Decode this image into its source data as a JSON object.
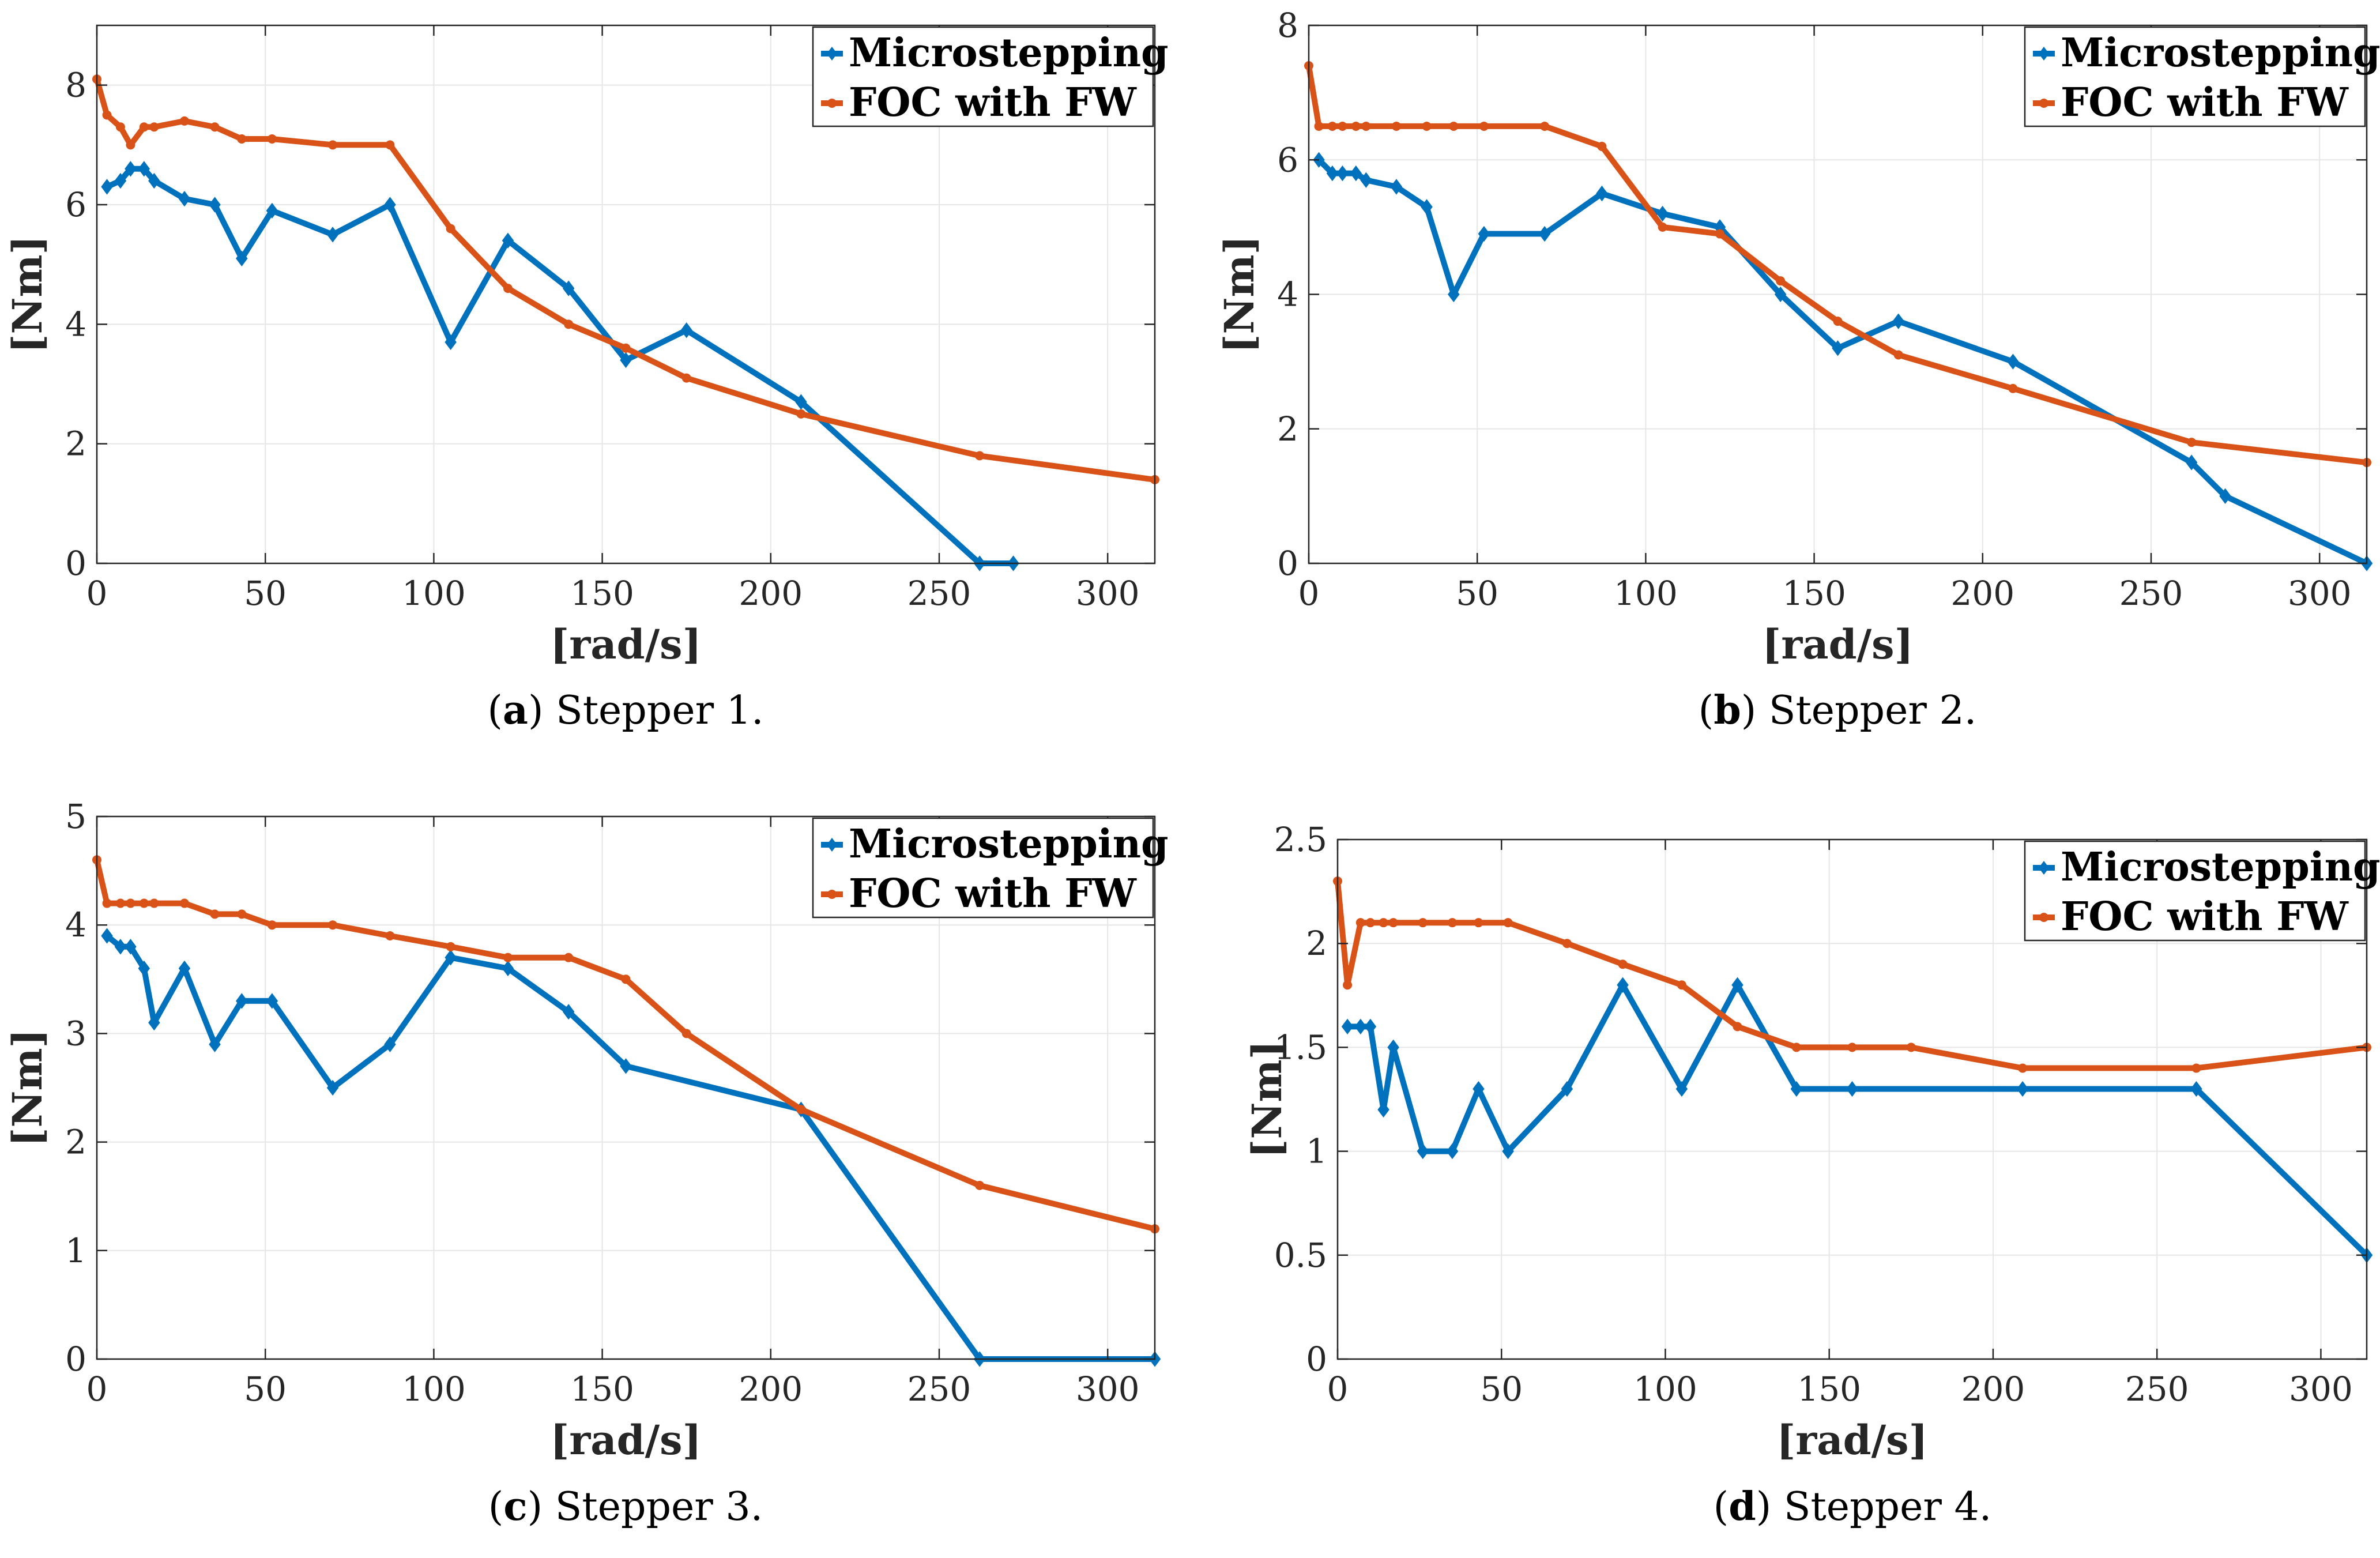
{
  "chart_data": [
    {
      "type": "line",
      "caption": {
        "letter": "a",
        "text": "Stepper 1."
      },
      "xlabel": "[rad/s]",
      "ylabel": "[Nm]",
      "xlim": [
        0,
        314
      ],
      "ylim": [
        0,
        9
      ],
      "xticks": [
        0,
        50,
        100,
        150,
        200,
        250,
        300
      ],
      "yticks": [
        0,
        2,
        4,
        6,
        8
      ],
      "grid": true,
      "legend_position": "top-right",
      "series": [
        {
          "name": "Microstepping",
          "color": "#0072BD",
          "marker": "diamond",
          "x": [
            3,
            7,
            10,
            14,
            17,
            26,
            35,
            43,
            52,
            70,
            87,
            105,
            122,
            140,
            157,
            175,
            209,
            262,
            272
          ],
          "y": [
            6.3,
            6.4,
            6.6,
            6.6,
            6.4,
            6.1,
            6.0,
            5.1,
            5.9,
            5.5,
            6.0,
            3.7,
            5.4,
            4.6,
            3.4,
            3.9,
            2.7,
            0,
            0
          ]
        },
        {
          "name": "FOC with FW",
          "color": "#D95319",
          "marker": "circle",
          "x": [
            0,
            3,
            7,
            10,
            14,
            17,
            26,
            35,
            43,
            52,
            70,
            87,
            105,
            122,
            140,
            157,
            175,
            209,
            262,
            314
          ],
          "y": [
            8.1,
            7.5,
            7.3,
            7.0,
            7.3,
            7.3,
            7.4,
            7.3,
            7.1,
            7.1,
            7.0,
            7.0,
            5.6,
            4.6,
            4.0,
            3.6,
            3.1,
            2.5,
            1.8,
            1.4
          ]
        }
      ]
    },
    {
      "type": "line",
      "caption": {
        "letter": "b",
        "text": "Stepper 2."
      },
      "xlabel": "[rad/s]",
      "ylabel": "[Nm]",
      "xlim": [
        0,
        314
      ],
      "ylim": [
        0,
        8
      ],
      "xticks": [
        0,
        50,
        100,
        150,
        200,
        250,
        300
      ],
      "yticks": [
        0,
        2,
        4,
        6,
        8
      ],
      "grid": true,
      "legend_position": "top-right",
      "series": [
        {
          "name": "Microstepping",
          "color": "#0072BD",
          "marker": "diamond",
          "x": [
            3,
            7,
            10,
            14,
            17,
            26,
            35,
            43,
            52,
            70,
            87,
            105,
            122,
            140,
            157,
            175,
            209,
            262,
            272,
            314
          ],
          "y": [
            6.0,
            5.8,
            5.8,
            5.8,
            5.7,
            5.6,
            5.3,
            4.0,
            4.9,
            4.9,
            5.5,
            5.2,
            5.0,
            4.0,
            3.2,
            3.6,
            3.0,
            1.5,
            1.0,
            0
          ]
        },
        {
          "name": "FOC with FW",
          "color": "#D95319",
          "marker": "circle",
          "x": [
            0,
            3,
            7,
            10,
            14,
            17,
            26,
            35,
            43,
            52,
            70,
            87,
            105,
            122,
            140,
            157,
            175,
            209,
            262,
            314
          ],
          "y": [
            7.4,
            6.5,
            6.5,
            6.5,
            6.5,
            6.5,
            6.5,
            6.5,
            6.5,
            6.5,
            6.5,
            6.2,
            5.0,
            4.9,
            4.2,
            3.6,
            3.1,
            2.6,
            1.8,
            1.5
          ]
        }
      ]
    },
    {
      "type": "line",
      "caption": {
        "letter": "c",
        "text": "Stepper 3."
      },
      "xlabel": "[rad/s]",
      "ylabel": "[Nm]",
      "xlim": [
        0,
        314
      ],
      "ylim": [
        0,
        5
      ],
      "xticks": [
        0,
        50,
        100,
        150,
        200,
        250,
        300
      ],
      "yticks": [
        0,
        1,
        2,
        3,
        4,
        5
      ],
      "grid": true,
      "legend_position": "top-right",
      "series": [
        {
          "name": "Microstepping",
          "color": "#0072BD",
          "marker": "diamond",
          "x": [
            3,
            7,
            10,
            14,
            17,
            26,
            35,
            43,
            52,
            70,
            87,
            105,
            122,
            140,
            157,
            209,
            262,
            314
          ],
          "y": [
            3.9,
            3.8,
            3.8,
            3.6,
            3.1,
            3.6,
            2.9,
            3.3,
            3.3,
            2.5,
            2.9,
            3.7,
            3.6,
            3.2,
            2.7,
            2.3,
            0,
            0
          ]
        },
        {
          "name": "FOC with FW",
          "color": "#D95319",
          "marker": "circle",
          "x": [
            0,
            3,
            7,
            10,
            14,
            17,
            26,
            35,
            43,
            52,
            70,
            87,
            105,
            122,
            140,
            157,
            175,
            209,
            262,
            314
          ],
          "y": [
            4.6,
            4.2,
            4.2,
            4.2,
            4.2,
            4.2,
            4.2,
            4.1,
            4.1,
            4.0,
            4.0,
            3.9,
            3.8,
            3.7,
            3.7,
            3.5,
            3.0,
            2.3,
            1.6,
            1.2
          ]
        }
      ]
    },
    {
      "type": "line",
      "caption": {
        "letter": "d",
        "text": "Stepper 4."
      },
      "xlabel": "[rad/s]",
      "ylabel": "[Nm]",
      "xlim": [
        0,
        314
      ],
      "ylim": [
        0,
        2.5
      ],
      "xticks": [
        0,
        50,
        100,
        150,
        200,
        250,
        300
      ],
      "yticks": [
        0,
        0.5,
        1,
        1.5,
        2,
        2.5
      ],
      "grid": true,
      "legend_position": "top-right",
      "series": [
        {
          "name": "Microstepping",
          "color": "#0072BD",
          "marker": "diamond",
          "x": [
            3,
            7,
            10,
            14,
            17,
            26,
            35,
            43,
            52,
            70,
            87,
            105,
            122,
            140,
            157,
            209,
            262,
            314
          ],
          "y": [
            1.6,
            1.6,
            1.6,
            1.2,
            1.5,
            1.0,
            1.0,
            1.3,
            1.0,
            1.3,
            1.8,
            1.3,
            1.8,
            1.3,
            1.3,
            1.3,
            1.3,
            0.5
          ]
        },
        {
          "name": "FOC with FW",
          "color": "#D95319",
          "marker": "circle",
          "x": [
            0,
            3,
            7,
            10,
            14,
            17,
            26,
            35,
            43,
            52,
            70,
            87,
            105,
            122,
            140,
            157,
            175,
            209,
            262,
            314
          ],
          "y": [
            2.3,
            1.8,
            2.1,
            2.1,
            2.1,
            2.1,
            2.1,
            2.1,
            2.1,
            2.1,
            2.0,
            1.9,
            1.8,
            1.6,
            1.5,
            1.5,
            1.5,
            1.4,
            1.4,
            1.5
          ]
        }
      ]
    }
  ]
}
